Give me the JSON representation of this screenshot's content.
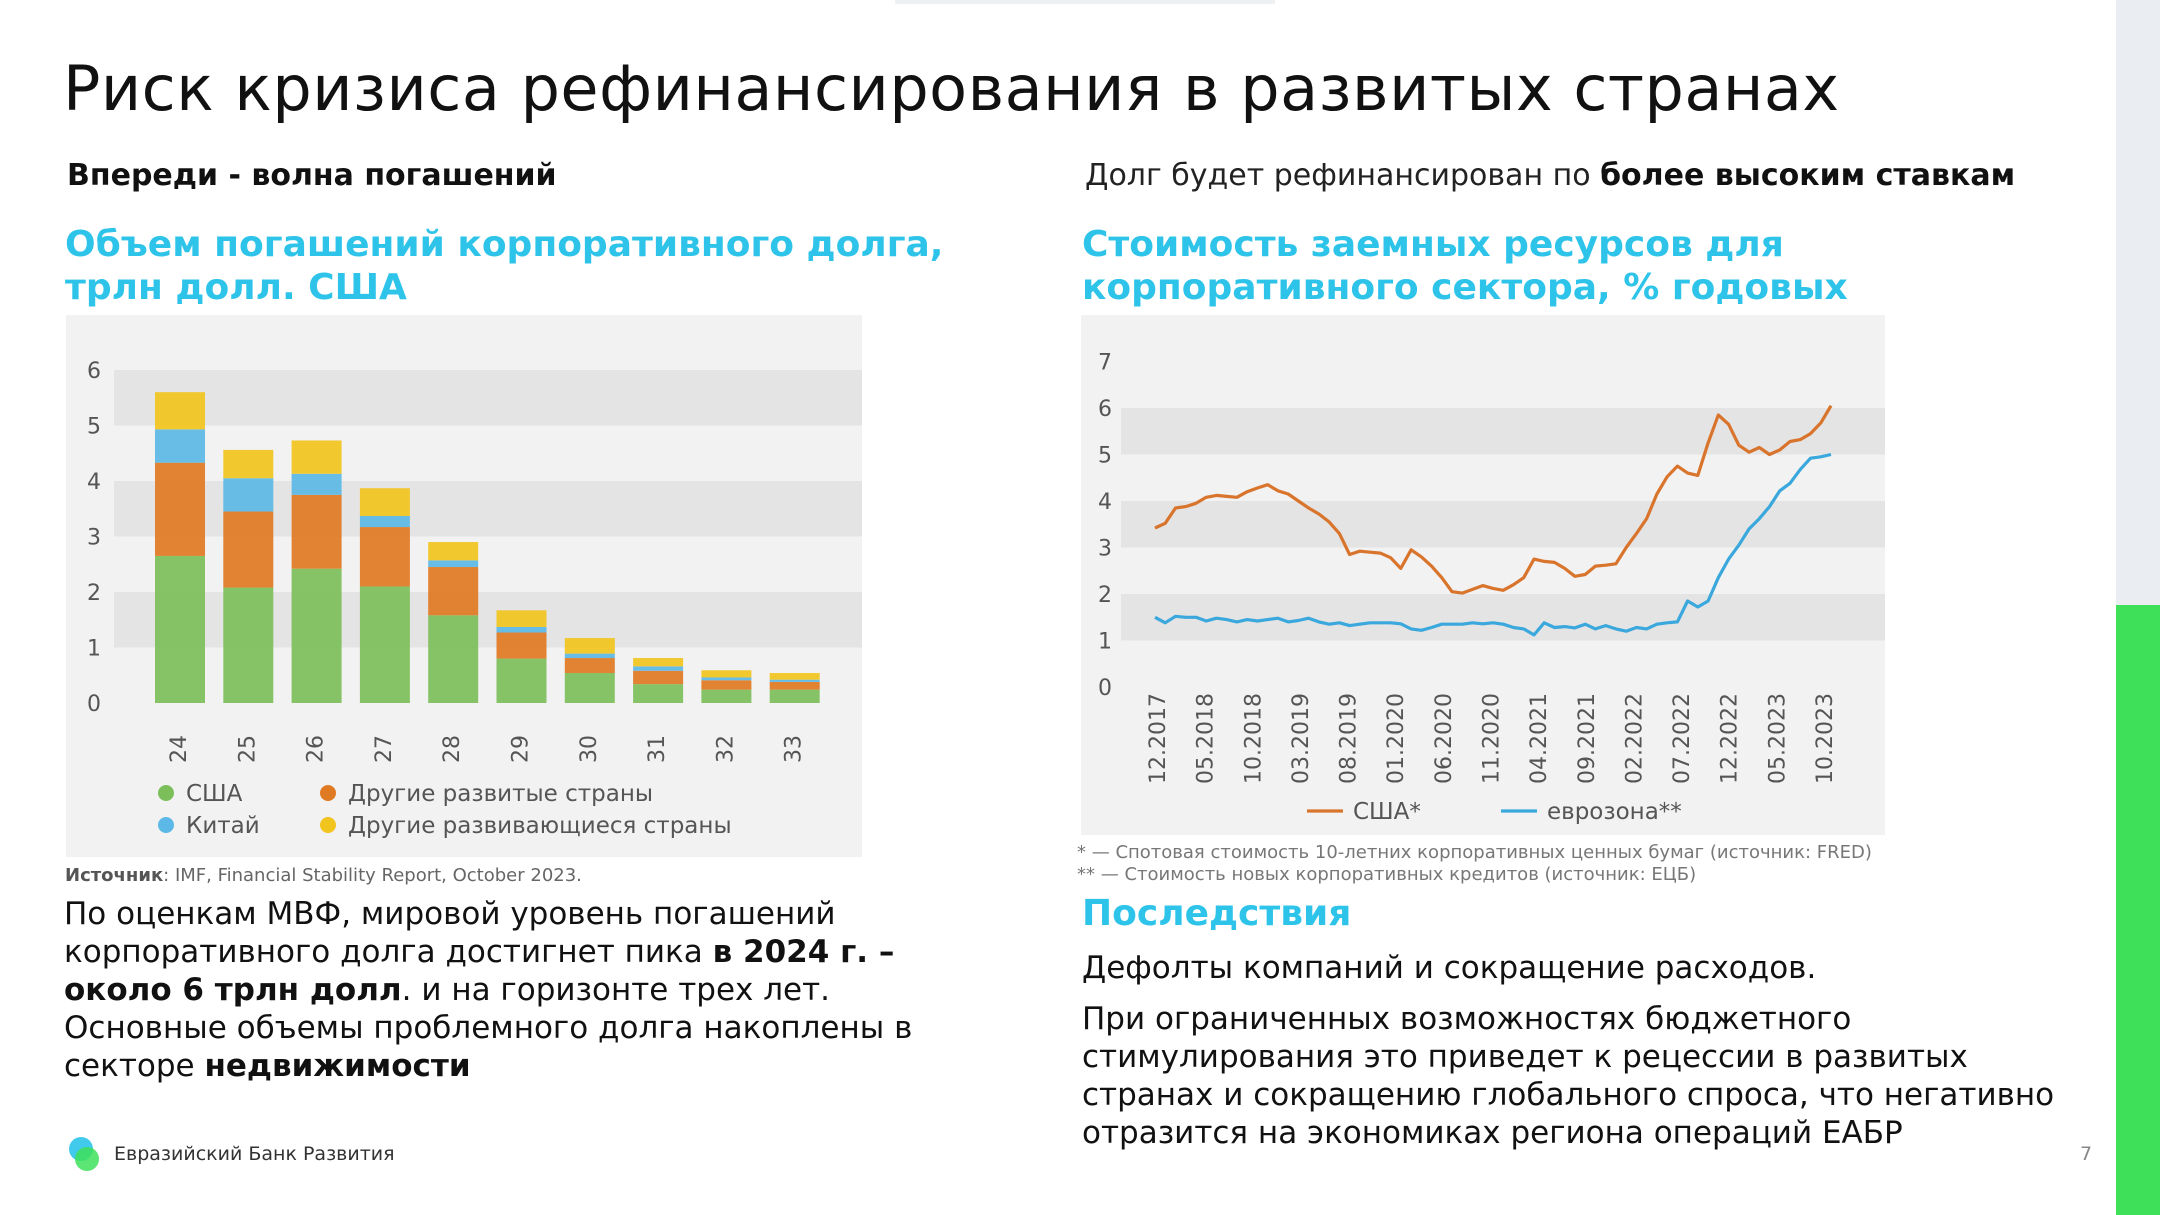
{
  "title": "Риск кризиса рефинансирования в развитых странах",
  "left": {
    "subtitle": "Впереди - волна погашений",
    "chart_title": "Объем погашений корпоративного долга, трлн долл. США",
    "source_label": "Источник",
    "source_text": ": IMF, Financial Stability Report, October 2023.",
    "body_parts": [
      {
        "t": "По оценкам МВФ, мировой уровень погашений корпоративного долга достигнет пика ",
        "b": false
      },
      {
        "t": "в 2024 г. – около 6 трлн долл",
        "b": true
      },
      {
        "t": ". и на горизонте трех лет. Основные объемы проблемного долга накоплены в секторе ",
        "b": false
      },
      {
        "t": "недвижимости",
        "b": true
      }
    ]
  },
  "right": {
    "subtitle_plain": "Долг будет рефинансирован по ",
    "subtitle_bold": "более высоким ставкам",
    "chart_title": "Стоимость заемных ресурсов для корпоративного сектора, % годовых",
    "note1": "* —  Спотовая стоимость 10-летних корпоративных ценных бумаг (источник: FRED)",
    "note2": "** — Стоимость новых корпоративных кредитов (источник: ЕЦБ)",
    "consequences_title": "Последствия",
    "consequence_1": "Дефолты компаний и сокращение расходов.",
    "consequence_2": "При ограниченных возможностях бюджетного стимулирования это приведет к рецессии в развитых странах и сокращению глобального спроса, что негативно отразится на экономиках региона операций ЕАБР"
  },
  "footer": {
    "logo_text": "Евразийский Банк Развития",
    "page_number": "7"
  },
  "colors": {
    "accent": "#2ec4ea",
    "usa_bar": "#7cbf5a",
    "other_developed": "#e07a22",
    "china": "#5cb8e6",
    "other_emerging": "#f2c41e",
    "usa_line": "#d9742c",
    "euro_line": "#3aa8dc",
    "green_side": "#3ee05a"
  },
  "chart_data": [
    {
      "type": "bar",
      "stacked": true,
      "categories": [
        "24",
        "25",
        "26",
        "27",
        "28",
        "29",
        "30",
        "31",
        "32",
        "33"
      ],
      "ylim": [
        0,
        6
      ],
      "yticks": [
        0,
        1,
        2,
        3,
        4,
        5,
        6
      ],
      "series": [
        {
          "name": "США",
          "values": [
            2.65,
            2.08,
            2.42,
            2.1,
            1.58,
            0.8,
            0.54,
            0.34,
            0.24,
            0.24
          ]
        },
        {
          "name": "Другие развитые страны",
          "values": [
            1.68,
            1.37,
            1.33,
            1.07,
            0.87,
            0.47,
            0.27,
            0.24,
            0.17,
            0.14
          ]
        },
        {
          "name": "Китай",
          "values": [
            0.6,
            0.6,
            0.38,
            0.2,
            0.12,
            0.1,
            0.08,
            0.08,
            0.05,
            0.04
          ]
        },
        {
          "name": "Другие развивающиеся страны",
          "values": [
            0.67,
            0.51,
            0.6,
            0.5,
            0.33,
            0.3,
            0.28,
            0.15,
            0.13,
            0.12
          ]
        }
      ],
      "legend": "bottom",
      "grid": "horizontal bands"
    },
    {
      "type": "line",
      "x_ticks": [
        "12.2017",
        "05.2018",
        "10.2018",
        "03.2019",
        "08.2019",
        "01.2020",
        "06.2020",
        "11.2020",
        "04.2021",
        "09.2021",
        "02.2022",
        "07.2022",
        "12.2022",
        "05.2023",
        "10.2023"
      ],
      "ylim": [
        0,
        7
      ],
      "yticks": [
        0,
        1,
        2,
        3,
        4,
        5,
        6,
        7
      ],
      "series": [
        {
          "name": "США*",
          "values": [
            3.42,
            3.52,
            3.85,
            3.88,
            3.95,
            4.08,
            4.12,
            4.1,
            4.08,
            4.2,
            4.28,
            4.35,
            4.22,
            4.15,
            4.0,
            3.85,
            3.72,
            3.55,
            3.3,
            2.85,
            2.92,
            2.9,
            2.88,
            2.78,
            2.55,
            2.95,
            2.8,
            2.6,
            2.35,
            2.05,
            2.02,
            2.1,
            2.18,
            2.12,
            2.08,
            2.2,
            2.35,
            2.75,
            2.7,
            2.68,
            2.55,
            2.38,
            2.42,
            2.6,
            2.62,
            2.65,
            3.0,
            3.3,
            3.62,
            4.15,
            4.52,
            4.75,
            4.6,
            4.55,
            5.25,
            5.85,
            5.65,
            5.2,
            5.05,
            5.15,
            5.0,
            5.1,
            5.28,
            5.32,
            5.45,
            5.68,
            6.05
          ]
        },
        {
          "name": "еврозона**",
          "values": [
            1.5,
            1.38,
            1.52,
            1.5,
            1.5,
            1.42,
            1.48,
            1.45,
            1.4,
            1.45,
            1.42,
            1.45,
            1.48,
            1.4,
            1.43,
            1.48,
            1.4,
            1.35,
            1.38,
            1.32,
            1.35,
            1.38,
            1.38,
            1.38,
            1.36,
            1.25,
            1.22,
            1.28,
            1.35,
            1.35,
            1.35,
            1.38,
            1.36,
            1.38,
            1.35,
            1.28,
            1.25,
            1.12,
            1.38,
            1.28,
            1.3,
            1.27,
            1.35,
            1.25,
            1.32,
            1.25,
            1.2,
            1.28,
            1.25,
            1.35,
            1.38,
            1.4,
            1.85,
            1.72,
            1.85,
            2.35,
            2.75,
            3.05,
            3.4,
            3.62,
            3.88,
            4.22,
            4.38,
            4.68,
            4.92,
            4.95,
            5.0
          ]
        }
      ],
      "legend": "bottom",
      "grid": "horizontal bands"
    }
  ]
}
